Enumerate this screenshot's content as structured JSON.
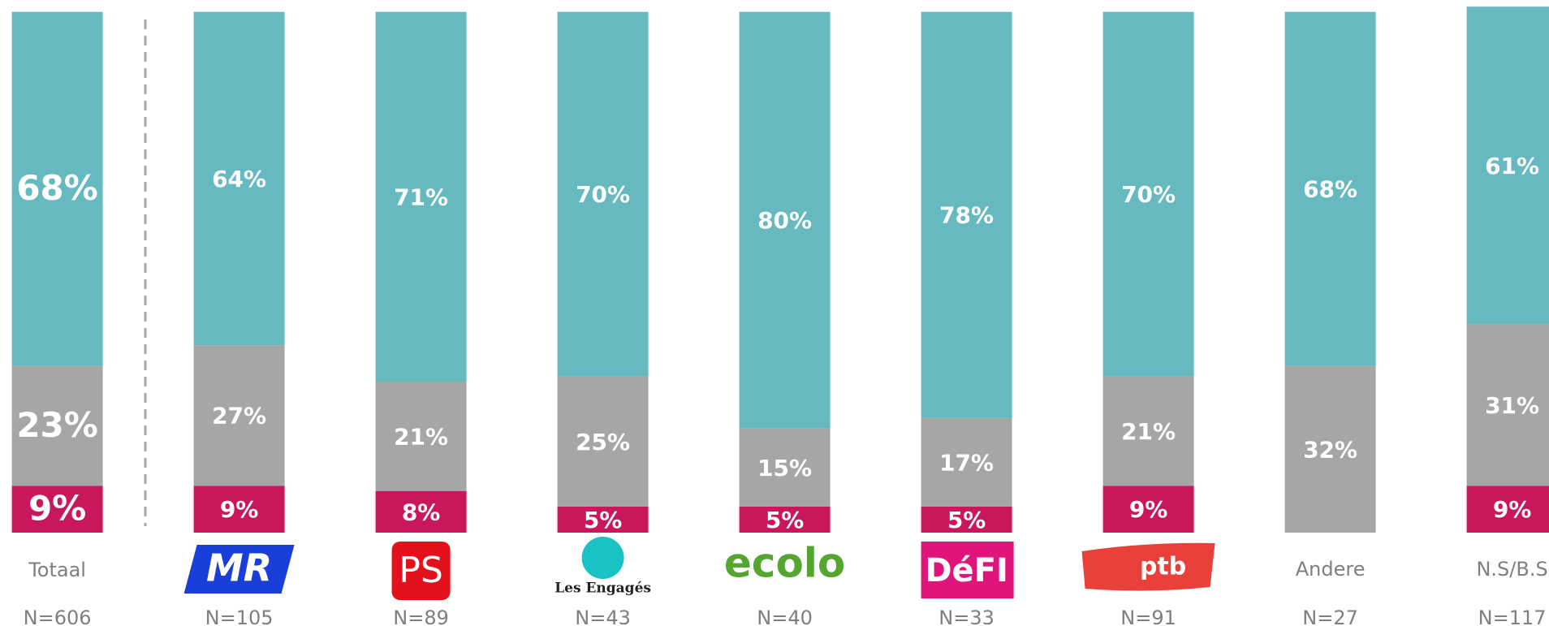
{
  "chart_data": {
    "type": "stacked_bar",
    "categories": [
      "Totaal",
      "MR",
      "PS",
      "Les Engagés",
      "ecolo",
      "DéFI",
      "ptb",
      "Andere",
      "N.S/B.S"
    ],
    "counts": [
      "N=606",
      "N=105",
      "N=89",
      "N=43",
      "N=40",
      "N=33",
      "N=91",
      "N=27",
      "N=117"
    ],
    "ylim": [
      0,
      100
    ],
    "series": [
      {
        "color": "#c8175d",
        "values": [
          9,
          9,
          8,
          5,
          5,
          5,
          9,
          null,
          9
        ],
        "value_labels": [
          "9%",
          "9%",
          "8%",
          "5%",
          "5%",
          "5%",
          "9%",
          null,
          "9%"
        ]
      },
      {
        "color": "#a6a6a6",
        "values": [
          23,
          27,
          21,
          25,
          15,
          17,
          21,
          32,
          31
        ],
        "value_labels": [
          "23%",
          "27%",
          "21%",
          "25%",
          "15%",
          "17%",
          "21%",
          "32%",
          "31%"
        ]
      },
      {
        "color": "#66b9bf",
        "values": [
          68,
          64,
          71,
          70,
          80,
          78,
          70,
          68,
          61
        ],
        "value_labels": [
          "68%",
          "64%",
          "71%",
          "70%",
          "80%",
          "78%",
          "70%",
          "68%",
          "61%"
        ]
      }
    ]
  }
}
